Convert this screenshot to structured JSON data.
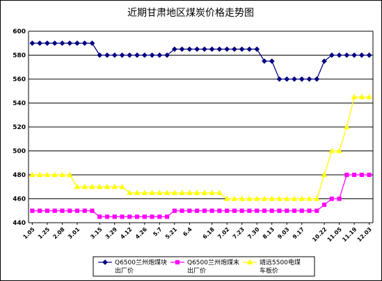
{
  "chart_data": {
    "type": "line",
    "title": "近期甘肃地区煤炭价格走势图",
    "ylim": [
      440,
      600
    ],
    "yticks": [
      440,
      460,
      480,
      500,
      520,
      540,
      560,
      580,
      600
    ],
    "grid": "horizontal",
    "legend_position": "bottom",
    "x_tick_labels": [
      "1.05",
      "1.25",
      "2.08",
      "3.01",
      "3.15",
      "3.29",
      "4.12",
      "4.26",
      "5.7",
      "5.21",
      "6.4",
      "6.18",
      "7.02",
      "7.23",
      "7.30",
      "8.13",
      "9.03",
      "9.17",
      "10.22",
      "11.05",
      "11.19",
      "12.03"
    ],
    "series": [
      {
        "name": "Q6500兰州炮煤块出厂价",
        "color": "#000080",
        "marker": "diamond",
        "values": [
          590,
          590,
          590,
          590,
          590,
          590,
          590,
          590,
          590,
          580,
          580,
          580,
          580,
          580,
          580,
          580,
          580,
          580,
          580,
          585,
          585,
          585,
          585,
          585,
          585,
          585,
          585,
          585,
          585,
          585,
          585,
          575,
          575,
          560,
          560,
          560,
          560,
          560,
          560,
          575,
          580,
          580,
          580,
          580,
          580,
          580
        ]
      },
      {
        "name": "Q6500兰州炮煤末出厂价",
        "color": "#FF00FF",
        "marker": "square",
        "values": [
          450,
          450,
          450,
          450,
          450,
          450,
          450,
          450,
          450,
          445,
          445,
          445,
          445,
          445,
          445,
          445,
          445,
          445,
          445,
          450,
          450,
          450,
          450,
          450,
          450,
          450,
          450,
          450,
          450,
          450,
          450,
          450,
          450,
          450,
          450,
          450,
          450,
          450,
          450,
          455,
          460,
          460,
          480,
          480,
          480,
          480
        ]
      },
      {
        "name": "靖远5500电煤车板价",
        "color": "#FFFF00",
        "marker": "triangle",
        "values": [
          480,
          480,
          480,
          480,
          480,
          480,
          470,
          470,
          470,
          470,
          470,
          470,
          470,
          465,
          465,
          465,
          465,
          465,
          465,
          465,
          465,
          465,
          465,
          465,
          465,
          465,
          460,
          460,
          460,
          460,
          460,
          460,
          460,
          460,
          460,
          460,
          460,
          460,
          460,
          480,
          500,
          500,
          520,
          545,
          545,
          545
        ]
      }
    ]
  }
}
